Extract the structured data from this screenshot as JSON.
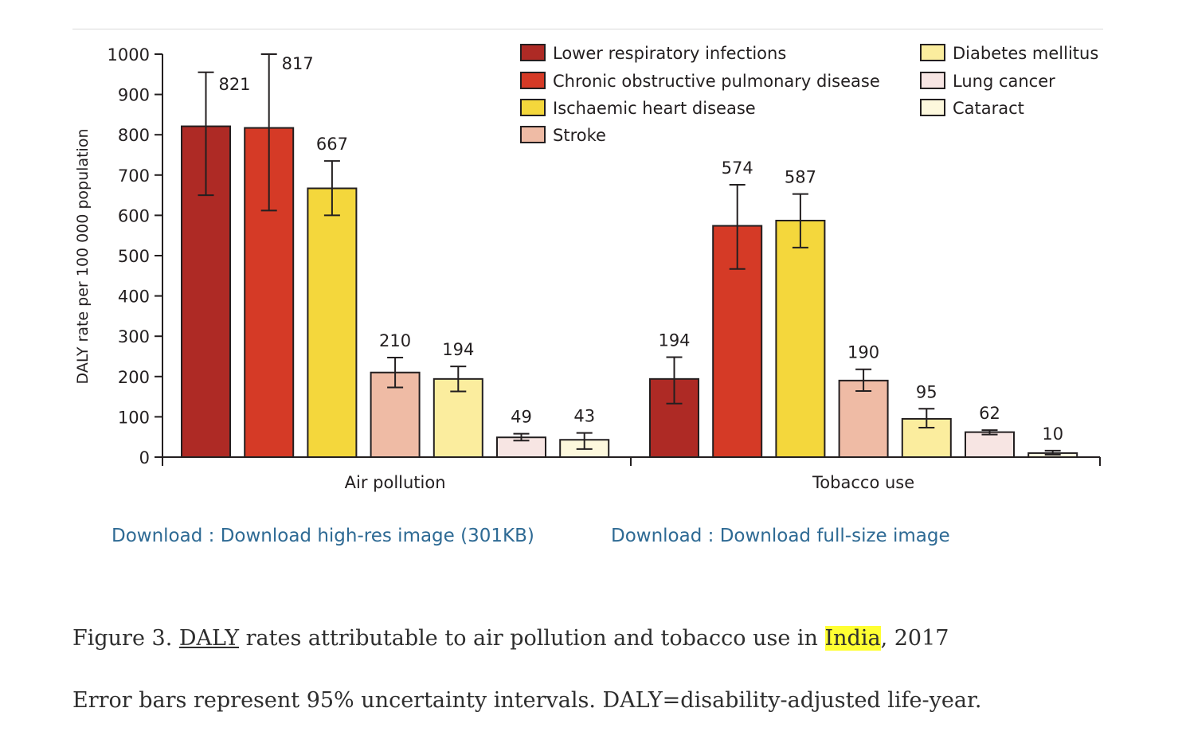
{
  "chart_data": {
    "type": "bar",
    "ylabel": "DALY rate per 100 000 population",
    "ylim": [
      0,
      1000
    ],
    "yticks": [
      0,
      100,
      200,
      300,
      400,
      500,
      600,
      700,
      800,
      900,
      1000
    ],
    "categories": [
      "Air pollution",
      "Tobacco use"
    ],
    "legend_position": "top",
    "series": [
      {
        "name": "Lower respiratory infections",
        "color": "#ae2a25",
        "values": [
          821,
          194
        ],
        "ci_low": [
          650,
          133
        ],
        "ci_high": [
          955,
          248
        ]
      },
      {
        "name": "Chronic obstructive pulmonary disease",
        "color": "#d53a26",
        "values": [
          817,
          574
        ],
        "ci_low": [
          612,
          467
        ],
        "ci_high": [
          1000,
          676
        ]
      },
      {
        "name": "Ischaemic heart disease",
        "color": "#f4d73c",
        "values": [
          667,
          587
        ],
        "ci_low": [
          600,
          520
        ],
        "ci_high": [
          735,
          653
        ]
      },
      {
        "name": "Stroke",
        "color": "#efbba5",
        "values": [
          210,
          190
        ],
        "ci_low": [
          173,
          164
        ],
        "ci_high": [
          247,
          218
        ]
      },
      {
        "name": "Diabetes mellitus",
        "color": "#fbed9e",
        "values": [
          194,
          95
        ],
        "ci_low": [
          163,
          73
        ],
        "ci_high": [
          225,
          120
        ]
      },
      {
        "name": "Lung cancer",
        "color": "#f7e5e3",
        "values": [
          49,
          62
        ],
        "ci_low": [
          41,
          56
        ],
        "ci_high": [
          58,
          67
        ]
      },
      {
        "name": "Cataract",
        "color": "#fdf8dd",
        "values": [
          43,
          10
        ],
        "ci_low": [
          20,
          6
        ],
        "ci_high": [
          60,
          16
        ]
      }
    ]
  },
  "downloads": {
    "high_res": "Download : Download high-res image (301KB)",
    "full_size": "Download : Download full-size image"
  },
  "caption": {
    "prefix": "Figure 3. ",
    "link": "DALY",
    "middle": " rates attributable to air pollution and tobacco use in ",
    "highlight": "India",
    "suffix": ", 2017"
  },
  "note": "Error bars represent 95% uncertainty intervals. DALY=disability-adjusted life-year."
}
